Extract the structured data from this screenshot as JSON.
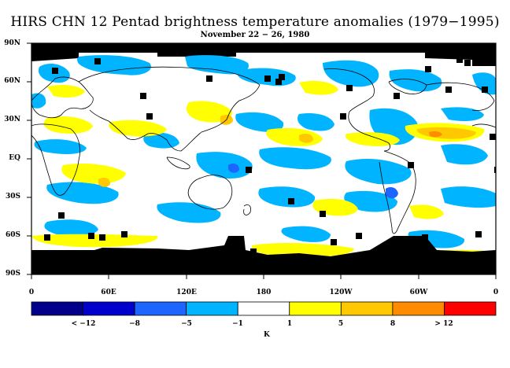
{
  "title": "HIRS CHN 12 Pentad brightness temperature anomalies (1979−1995)",
  "subtitle": "November 22 − 26, 1980",
  "y_ticks": [
    "90N",
    "60N",
    "30N",
    "EQ",
    "30S",
    "60S",
    "90S"
  ],
  "x_ticks": [
    "0",
    "60E",
    "120E",
    "180",
    "120W",
    "60W",
    "0"
  ],
  "colorbar": {
    "unit": "K",
    "colors": [
      "#00008b",
      "#0000cd",
      "#1e64ff",
      "#00b4ff",
      "#ffffff",
      "#ffff00",
      "#ffc800",
      "#ff8c00",
      "#ff0000"
    ],
    "labels": [
      "< −12",
      "−8",
      "−5",
      "−1",
      "1",
      "5",
      "8",
      "> 12"
    ]
  },
  "colors": {
    "missing": "#000000",
    "coast": "#000000",
    "cold": "#00b4ff",
    "cold_strong": "#1e64ff",
    "warm": "#ffff00",
    "warm_strong": "#ffc800",
    "warm_stronger": "#ff8c00"
  }
}
